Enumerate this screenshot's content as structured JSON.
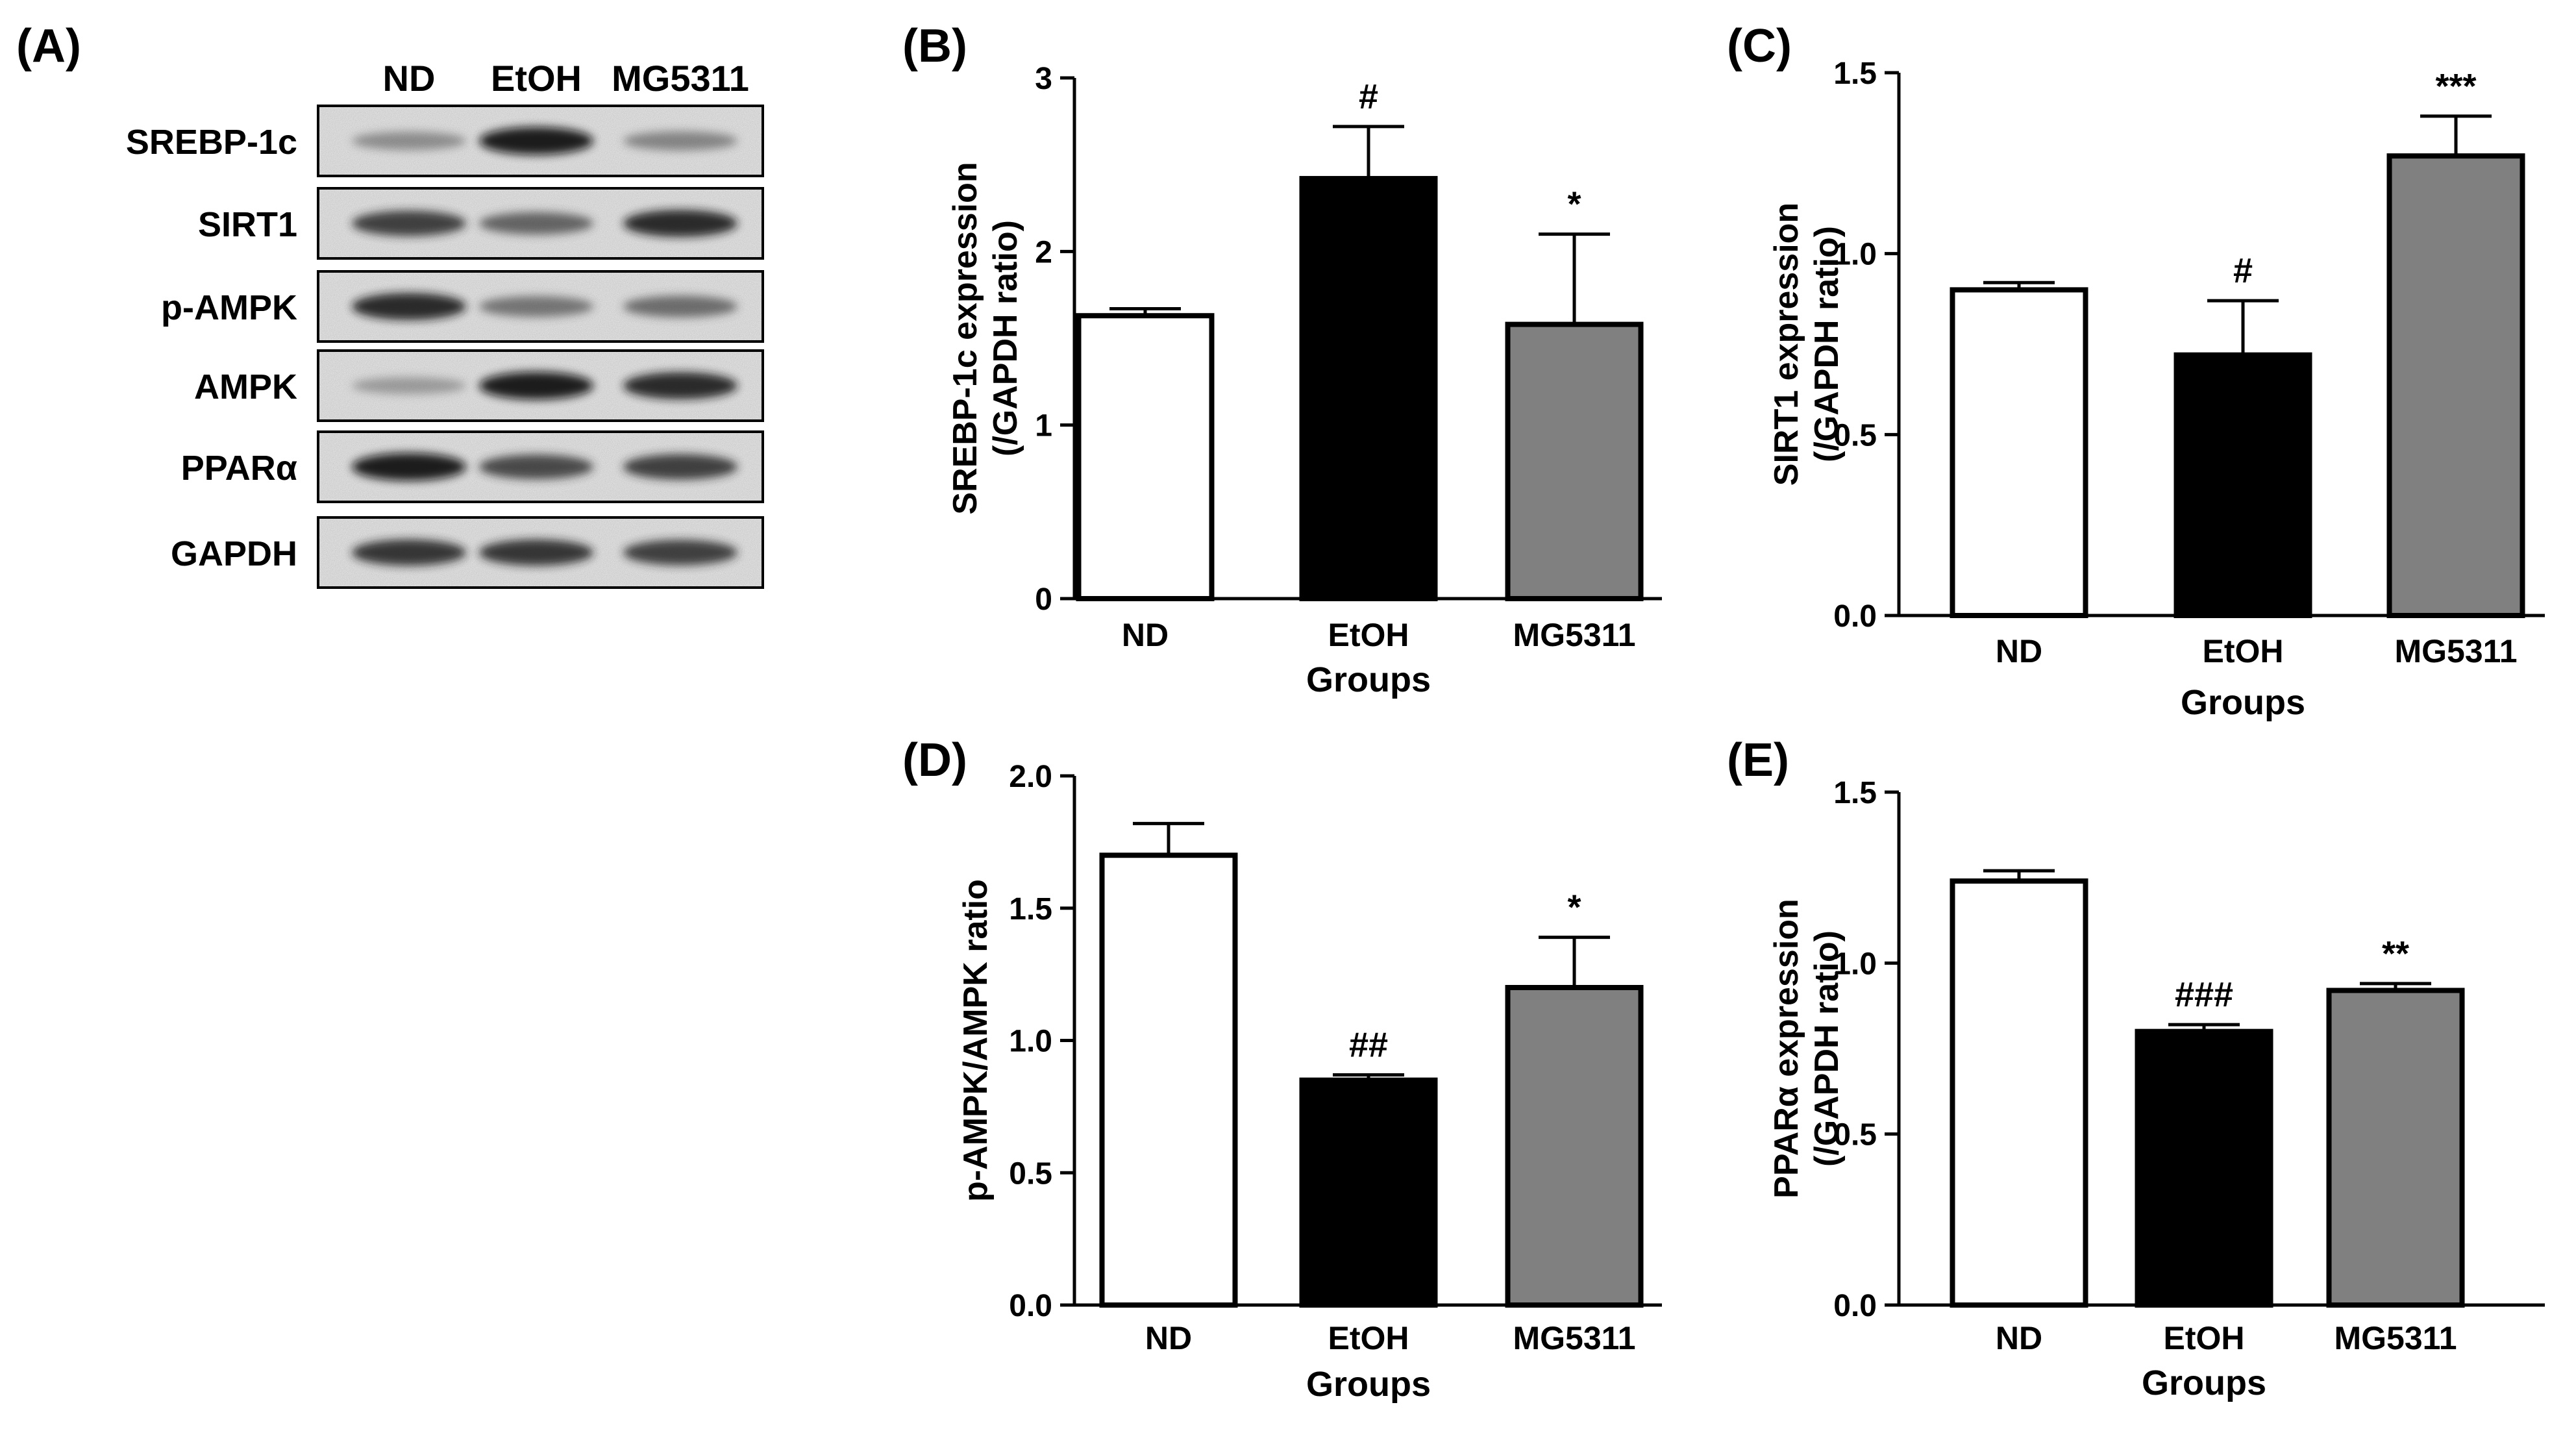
{
  "panel_a": {
    "label": "(A)",
    "lanes": [
      "ND",
      "EtOH",
      "MG5311"
    ],
    "proteins": [
      "SREBP-1c",
      "SIRT1",
      "p-AMPK",
      "AMPK",
      "PPARα",
      "GAPDH"
    ]
  },
  "chart_data": [
    {
      "panel": "(B)",
      "type": "bar",
      "categories": [
        "ND",
        "EtOH",
        "MG5311"
      ],
      "values": [
        1.63,
        2.42,
        1.58
      ],
      "errors": [
        0.04,
        0.3,
        0.52
      ],
      "annotations": [
        "",
        "#",
        "*"
      ],
      "bar_colors": [
        "#ffffff",
        "#000000",
        "#808080"
      ],
      "xlabel": "Groups",
      "ylabel": [
        "SREBP-1c expression",
        "(/GAPDH ratio)"
      ],
      "ylim": [
        0,
        3
      ],
      "yticks": [
        0,
        1,
        2,
        3
      ],
      "ytick_labels": [
        "0",
        "1",
        "2",
        "3"
      ]
    },
    {
      "panel": "(C)",
      "type": "bar",
      "categories": [
        "ND",
        "EtOH",
        "MG5311"
      ],
      "values": [
        0.9,
        0.72,
        1.27
      ],
      "errors": [
        0.02,
        0.15,
        0.11
      ],
      "annotations": [
        "",
        "#",
        "***"
      ],
      "bar_colors": [
        "#ffffff",
        "#000000",
        "#808080"
      ],
      "xlabel": "Groups",
      "ylabel": [
        "SIRT1 expression",
        "(/GAPDH ratio)"
      ],
      "ylim": [
        0,
        1.5
      ],
      "yticks": [
        0,
        0.5,
        1.0,
        1.5
      ],
      "ytick_labels": [
        "0.0",
        "0.5",
        "1.0",
        "1.5"
      ]
    },
    {
      "panel": "(D)",
      "type": "bar",
      "categories": [
        "ND",
        "EtOH",
        "MG5311"
      ],
      "values": [
        1.7,
        0.85,
        1.2
      ],
      "errors": [
        0.12,
        0.02,
        0.19
      ],
      "annotations": [
        "",
        "##",
        "*"
      ],
      "bar_colors": [
        "#ffffff",
        "#000000",
        "#808080"
      ],
      "xlabel": "Groups",
      "ylabel": [
        "p-AMPK/AMPK ratio"
      ],
      "ylim": [
        0,
        2.0
      ],
      "yticks": [
        0,
        0.5,
        1.0,
        1.5,
        2.0
      ],
      "ytick_labels": [
        "0.0",
        "0.5",
        "1.0",
        "1.5",
        "2.0"
      ]
    },
    {
      "panel": "(E)",
      "type": "bar",
      "categories": [
        "ND",
        "EtOH",
        "MG5311"
      ],
      "values": [
        1.24,
        0.8,
        0.92
      ],
      "errors": [
        0.03,
        0.02,
        0.02
      ],
      "annotations": [
        "",
        "###",
        "**"
      ],
      "bar_colors": [
        "#ffffff",
        "#000000",
        "#808080"
      ],
      "xlabel": "Groups",
      "ylabel": [
        "PPARα expression",
        "(/GAPDH ratio)"
      ],
      "ylim": [
        0,
        1.5
      ],
      "yticks": [
        0,
        0.5,
        1.0,
        1.5
      ],
      "ytick_labels": [
        "0.0",
        "0.5",
        "1.0",
        "1.5"
      ]
    }
  ]
}
